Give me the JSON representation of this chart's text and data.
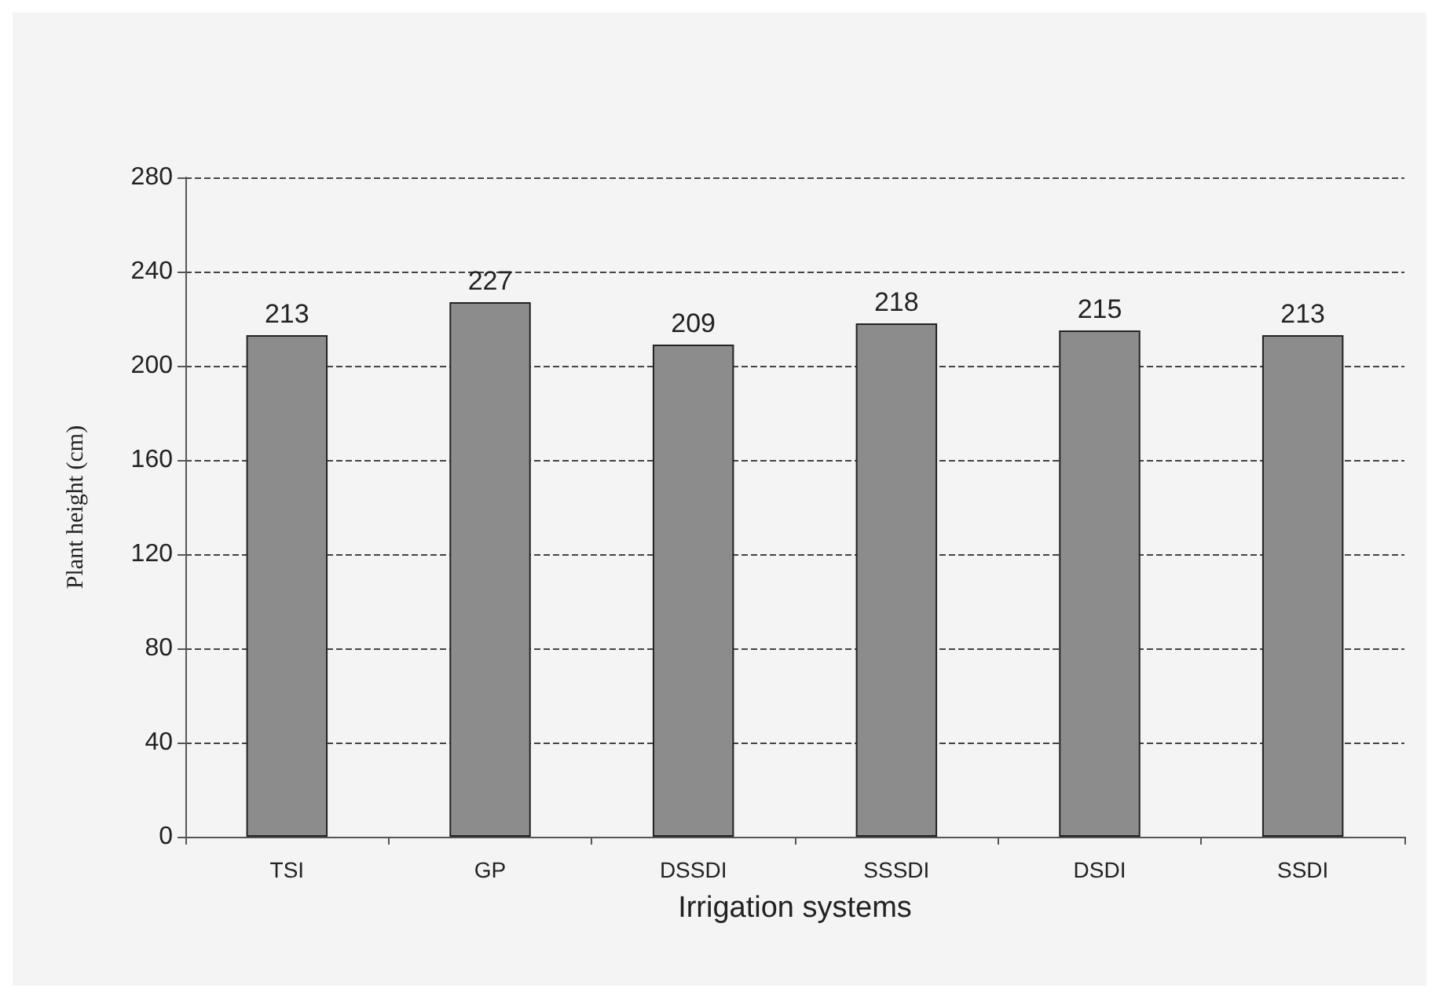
{
  "chart_data": {
    "type": "bar",
    "xlabel": "Irrigation systems",
    "ylabel": "Plant height (cm)",
    "categories": [
      "TSI",
      "GP",
      "DSSDI",
      "SSSDI",
      "DSDI",
      "SSDI"
    ],
    "values": [
      213,
      227,
      209,
      218,
      215,
      213
    ],
    "color": "#8c8c8c",
    "ylim": [
      0,
      280
    ],
    "yticks": [
      0,
      40,
      80,
      120,
      160,
      200,
      240,
      280
    ],
    "grid": "y",
    "data_labels": true
  }
}
